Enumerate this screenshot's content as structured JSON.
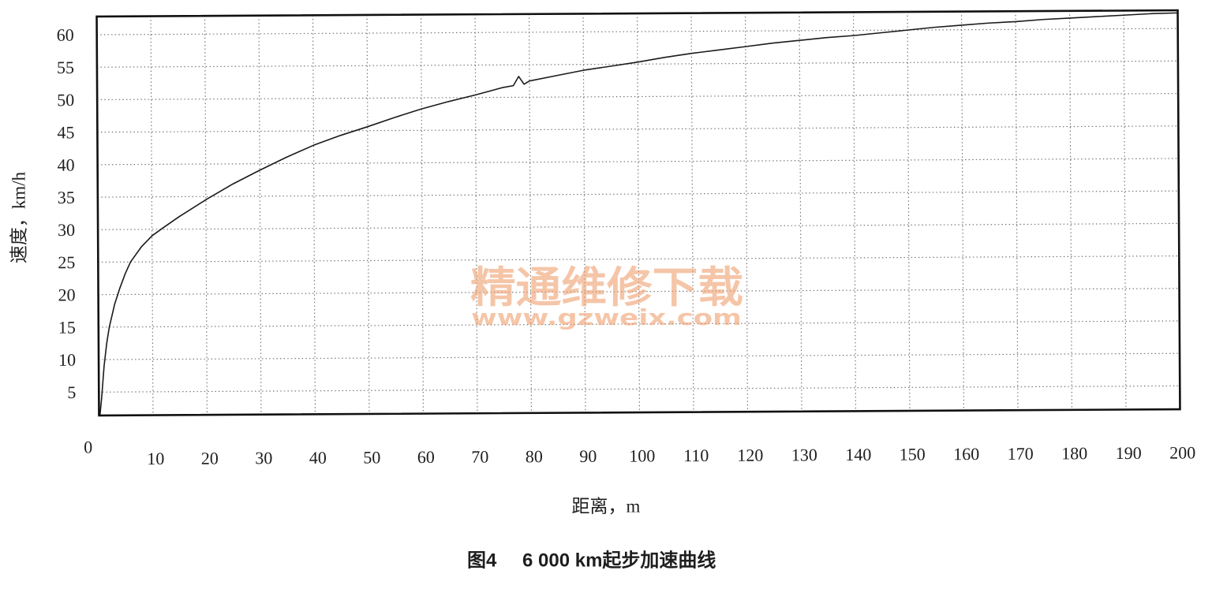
{
  "chart_data": {
    "type": "line",
    "figure_number": "图4",
    "title": "6 000 km起步加速曲线",
    "xlabel": "距离，m",
    "ylabel": "速度，km/h",
    "xlim": [
      0,
      200
    ],
    "ylim": [
      1.4,
      62.8
    ],
    "x_ticks": [
      0,
      10,
      20,
      30,
      40,
      50,
      60,
      70,
      80,
      90,
      100,
      110,
      120,
      130,
      140,
      150,
      160,
      170,
      180,
      190,
      200
    ],
    "y_ticks": [
      5,
      10,
      15,
      20,
      25,
      30,
      35,
      40,
      45,
      50,
      55,
      60
    ],
    "grid": true,
    "line_color": "#1a1a1a",
    "grid_color": "#707070",
    "x": [
      0,
      0.5,
      1,
      1.5,
      2,
      3,
      4,
      5,
      6,
      8,
      10,
      12,
      15,
      20,
      25,
      30,
      35,
      40,
      45,
      50,
      55,
      60,
      65,
      70,
      75,
      77,
      78,
      79,
      80,
      85,
      90,
      95,
      100,
      105,
      110,
      115,
      120,
      125,
      130,
      135,
      140,
      145,
      150,
      155,
      160,
      165,
      170,
      175,
      180,
      185,
      190,
      195,
      200
    ],
    "y": [
      0,
      4,
      9,
      12.5,
      15,
      18.5,
      21,
      23.2,
      25,
      27.3,
      29,
      30.2,
      31.9,
      34.5,
      36.9,
      39,
      41,
      42.8,
      44.3,
      45.6,
      47,
      48.3,
      49.4,
      50.4,
      51.5,
      51.8,
      53.2,
      52,
      52.5,
      53.3,
      54.1,
      54.7,
      55.3,
      56,
      56.6,
      57.1,
      57.6,
      58.1,
      58.5,
      58.9,
      59.2,
      59.6,
      60,
      60.4,
      60.7,
      61,
      61.2,
      61.5,
      61.7,
      61.9,
      62.1,
      62.3,
      62.4
    ]
  },
  "watermark": {
    "text": "精通维修下载",
    "url": "www.gzweix.com",
    "color": "#f0a070"
  }
}
